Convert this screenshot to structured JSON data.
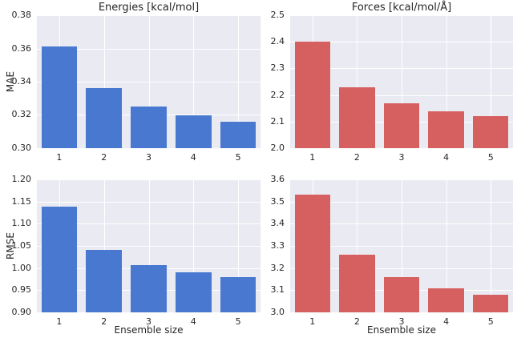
{
  "figure": {
    "background": "#ffffff",
    "plot_background": "#eaeaf2",
    "grid_color": "#ffffff",
    "text_color": "#262626",
    "blue": "#4878d0",
    "red": "#d65f5f"
  },
  "chart_data": [
    {
      "id": "energies-mae",
      "type": "bar",
      "title": "Energies [kcal/mol]",
      "xlabel": "",
      "ylabel": "MAE",
      "categories": [
        "1",
        "2",
        "3",
        "4",
        "5"
      ],
      "values": [
        0.361,
        0.336,
        0.325,
        0.32,
        0.316
      ],
      "ylim": [
        0.3,
        0.38
      ],
      "yticks": [
        0.3,
        0.32,
        0.34,
        0.36,
        0.38
      ],
      "ytick_labels": [
        "0.30",
        "0.32",
        "0.34",
        "0.36",
        "0.38"
      ],
      "bar_color": "#4878d0",
      "grid": true,
      "legend": null
    },
    {
      "id": "forces-mae",
      "type": "bar",
      "title": "Forces [kcal/mol/Å]",
      "xlabel": "",
      "ylabel": "",
      "categories": [
        "1",
        "2",
        "3",
        "4",
        "5"
      ],
      "values": [
        2.4,
        2.23,
        2.17,
        2.14,
        2.12
      ],
      "ylim": [
        2.0,
        2.5
      ],
      "yticks": [
        2.0,
        2.1,
        2.2,
        2.3,
        2.4,
        2.5
      ],
      "ytick_labels": [
        "2.0",
        "2.1",
        "2.2",
        "2.3",
        "2.4",
        "2.5"
      ],
      "bar_color": "#d65f5f",
      "grid": true,
      "legend": null
    },
    {
      "id": "energies-rmse",
      "type": "bar",
      "title": "",
      "xlabel": "Ensemble size",
      "ylabel": "RMSE",
      "categories": [
        "1",
        "2",
        "3",
        "4",
        "5"
      ],
      "values": [
        1.138,
        1.041,
        1.007,
        0.991,
        0.98
      ],
      "ylim": [
        0.9,
        1.2
      ],
      "yticks": [
        0.9,
        0.95,
        1.0,
        1.05,
        1.1,
        1.15,
        1.2
      ],
      "ytick_labels": [
        "0.90",
        "0.95",
        "1.00",
        "1.05",
        "1.10",
        "1.15",
        "1.20"
      ],
      "bar_color": "#4878d0",
      "grid": true,
      "legend": null
    },
    {
      "id": "forces-rmse",
      "type": "bar",
      "title": "",
      "xlabel": "Ensemble size",
      "ylabel": "",
      "categories": [
        "1",
        "2",
        "3",
        "4",
        "5"
      ],
      "values": [
        3.53,
        3.26,
        3.16,
        3.11,
        3.08
      ],
      "ylim": [
        3.0,
        3.6
      ],
      "yticks": [
        3.0,
        3.1,
        3.2,
        3.3,
        3.4,
        3.5,
        3.6
      ],
      "ytick_labels": [
        "3.0",
        "3.1",
        "3.2",
        "3.3",
        "3.4",
        "3.5",
        "3.6"
      ],
      "bar_color": "#d65f5f",
      "grid": true,
      "legend": null
    }
  ]
}
